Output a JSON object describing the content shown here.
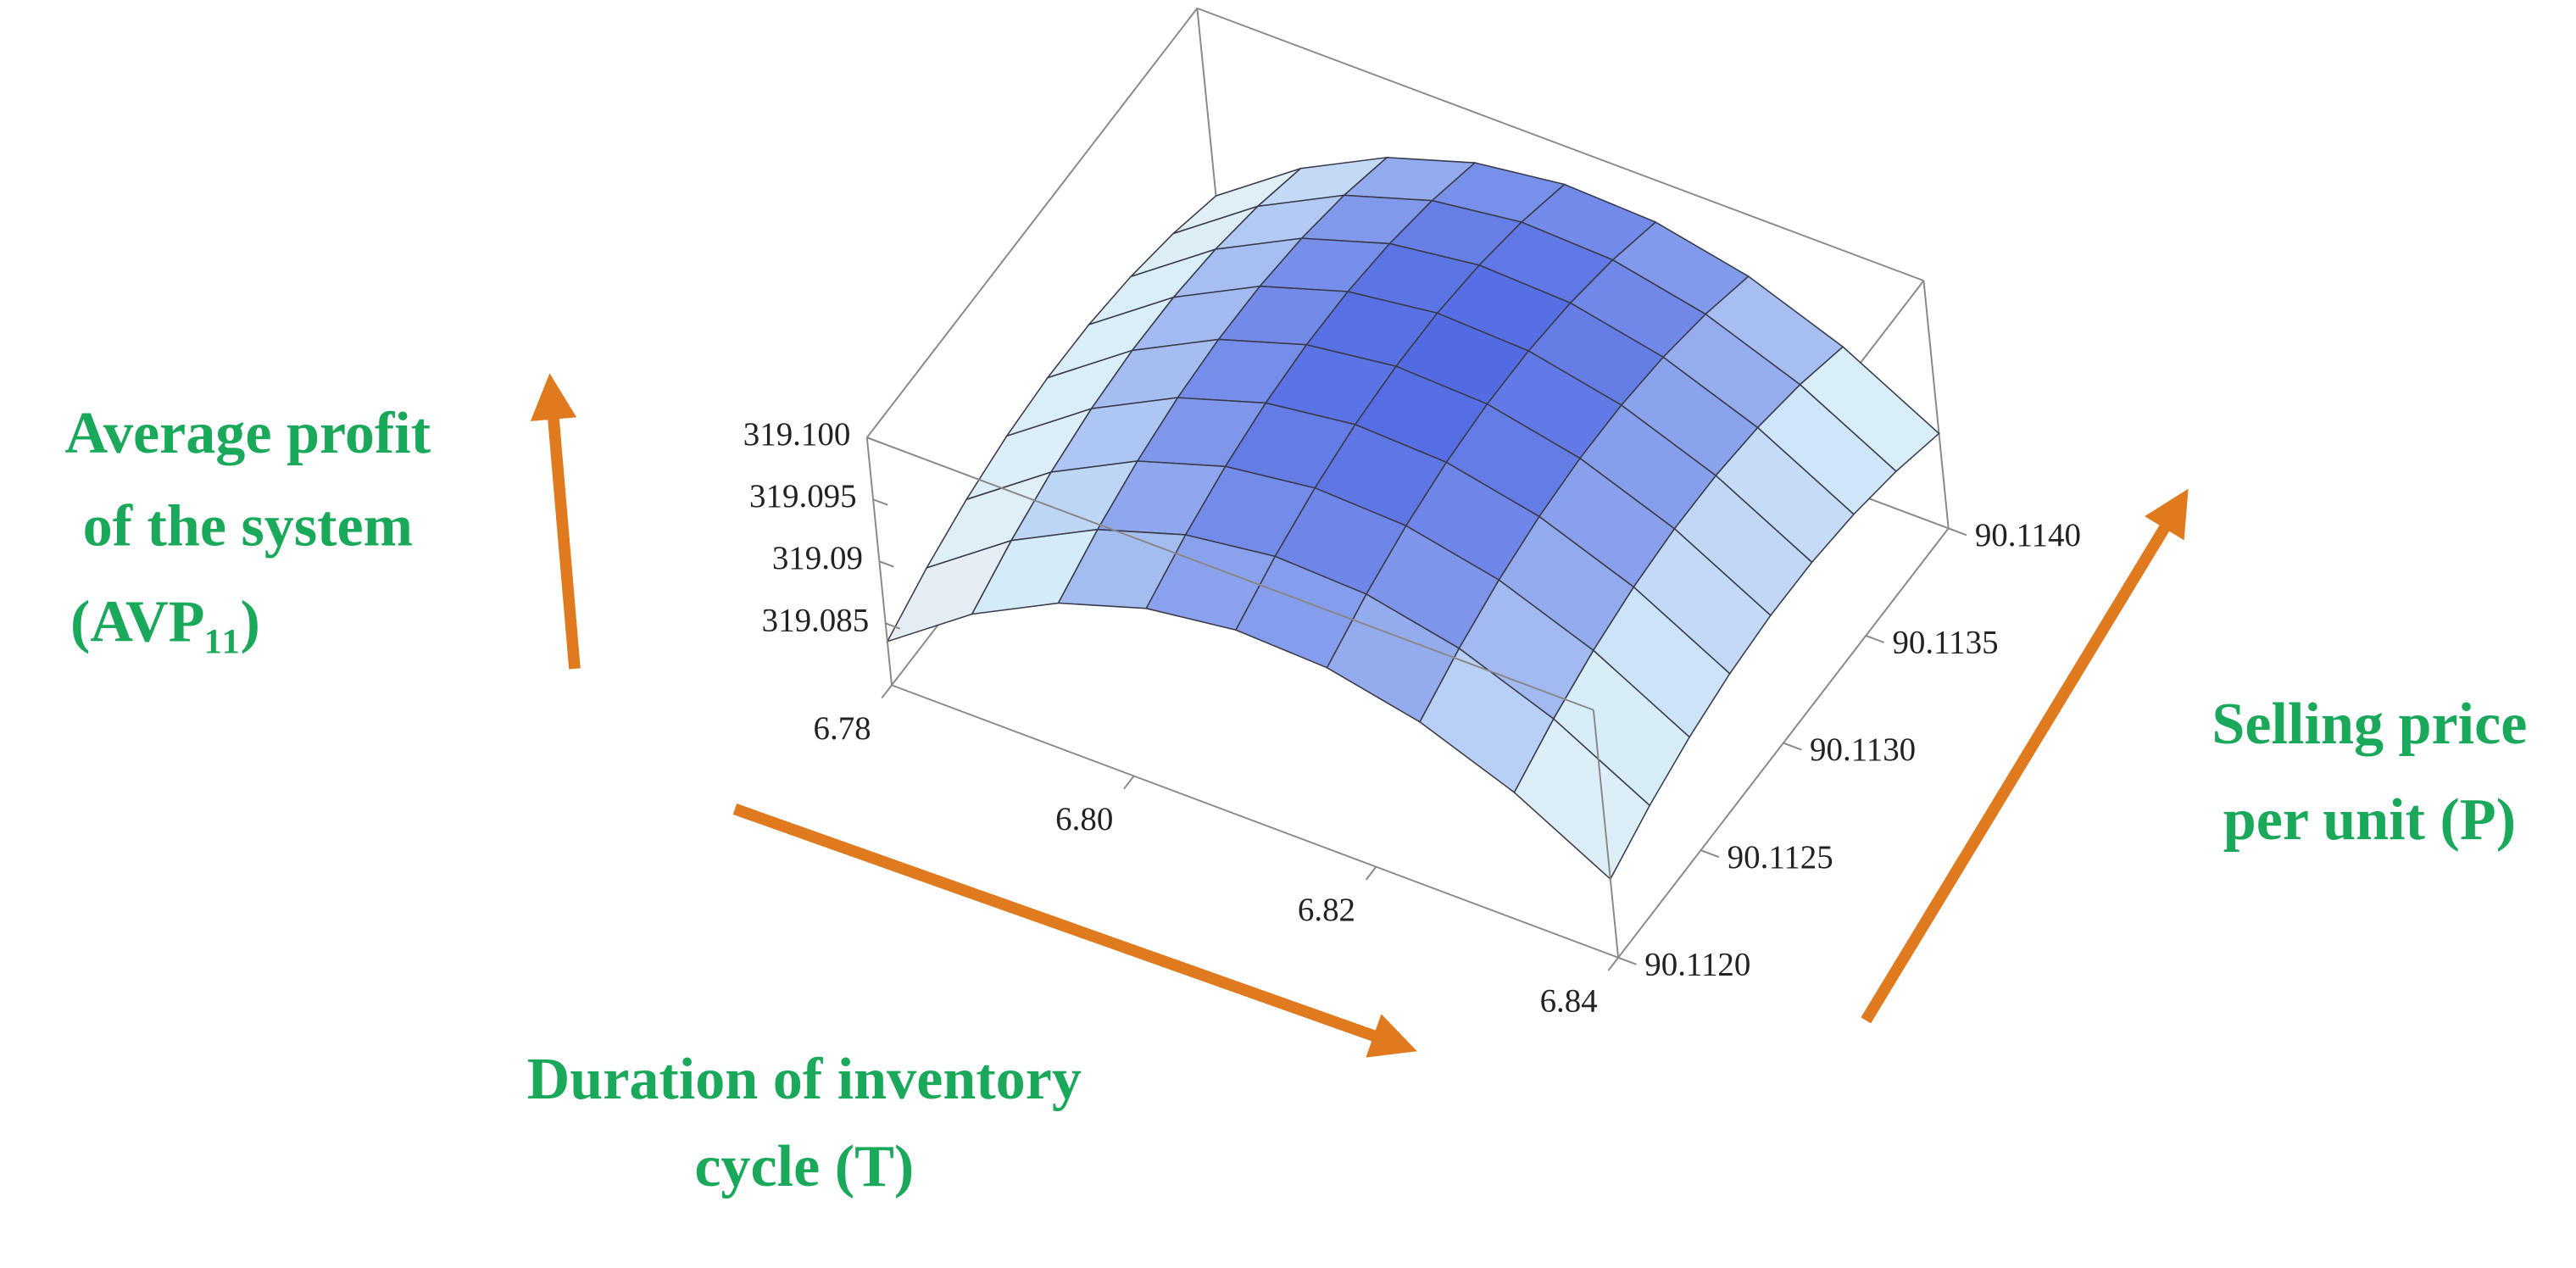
{
  "chart_data": {
    "type": "surface3d",
    "xlabel": [
      "Duration of inventory",
      "cycle (T)"
    ],
    "ylabel": [
      "Selling price",
      "per unit (P)"
    ],
    "zlabel": [
      "Average profit",
      "of the system",
      "(AVP₁₁)"
    ],
    "x": [
      6.78,
      6.7875,
      6.795,
      6.8025,
      6.81,
      6.8175,
      6.825,
      6.8325,
      6.84
    ],
    "y": [
      90.112,
      90.11225,
      90.1125,
      90.11275,
      90.113,
      90.11325,
      90.1135,
      90.11375,
      90.114
    ],
    "z": [
      [
        319.08353,
        319.08514,
        319.08633,
        319.08712,
        319.08749,
        319.08745,
        319.08699,
        319.08613,
        319.08485
      ],
      [
        319.08849,
        319.0901,
        319.09129,
        319.09208,
        319.09245,
        319.09241,
        319.09195,
        319.09109,
        319.08981
      ],
      [
        319.09213,
        319.09374,
        319.09493,
        319.09572,
        319.09609,
        319.09605,
        319.09559,
        319.09473,
        319.09345
      ],
      [
        319.09445,
        319.09606,
        319.09725,
        319.09804,
        319.09841,
        319.09837,
        319.09791,
        319.09705,
        319.09577
      ],
      [
        319.09546,
        319.09707,
        319.09826,
        319.09905,
        319.09942,
        319.09938,
        319.09892,
        319.09806,
        319.09678
      ],
      [
        319.09516,
        319.09677,
        319.09796,
        319.09875,
        319.09912,
        319.09908,
        319.09862,
        319.09776,
        319.09648
      ],
      [
        319.09353,
        319.09514,
        319.09633,
        319.09712,
        319.09749,
        319.09745,
        319.09699,
        319.09613,
        319.09485
      ],
      [
        319.09059,
        319.0922,
        319.09339,
        319.09418,
        319.09455,
        319.09451,
        319.09405,
        319.09319,
        319.09191
      ],
      [
        319.08634,
        319.08795,
        319.08914,
        319.08993,
        319.0903,
        319.09026,
        319.0898,
        319.08894,
        319.08766
      ]
    ],
    "xlim": [
      6.78,
      6.84
    ],
    "xticks": [
      6.78,
      {
        "value": 6.8,
        "label": "6.80"
      },
      6.82,
      6.84
    ],
    "ylim": [
      90.112,
      90.114
    ],
    "yticks": [
      {
        "value": 90.112,
        "label": "90.1120"
      },
      90.1125,
      {
        "value": 90.113,
        "label": "90.1130"
      },
      90.1135,
      {
        "value": 90.114,
        "label": "90.1140"
      }
    ],
    "zlim": [
      319.08,
      319.1
    ],
    "zticks": [
      319.085,
      319.09,
      319.095,
      {
        "value": 319.1,
        "label": "319.100"
      }
    ]
  }
}
